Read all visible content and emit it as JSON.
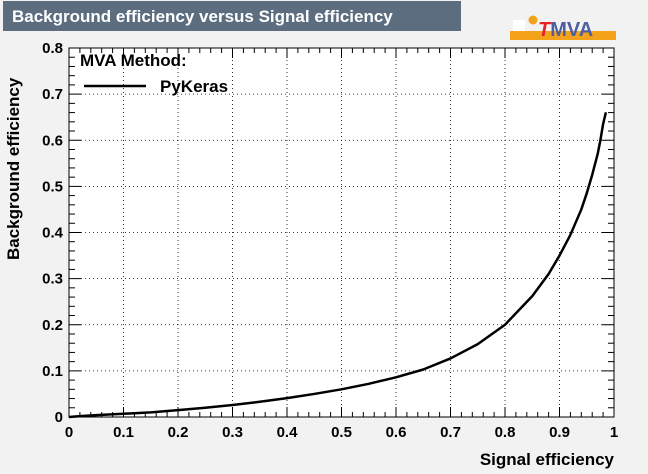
{
  "header": {
    "title": "Background efficiency versus Signal efficiency"
  },
  "logo": {
    "t_letter": "T",
    "rest": "MVA",
    "t_color": "#e8202a",
    "rest_color": "#4d5fa0",
    "accent_color": "#f5a21b"
  },
  "colors": {
    "title_bg": "#5d6d80",
    "page_bg": "#f2f2f2",
    "plot_bg": "#ffffff",
    "curve": "#000000"
  },
  "chart_data": {
    "type": "line",
    "title": "Background efficiency versus Signal efficiency",
    "xlabel": "Signal efficiency",
    "ylabel": "Background efficiency",
    "xlim": [
      0,
      1
    ],
    "ylim": [
      0,
      0.8
    ],
    "grid": true,
    "legend_position": "top-left",
    "legend_header": "MVA Method:",
    "x_ticks": [
      "0",
      "0.1",
      "0.2",
      "0.3",
      "0.4",
      "0.5",
      "0.6",
      "0.7",
      "0.8",
      "0.9",
      "1"
    ],
    "y_ticks": [
      "0",
      "0.1",
      "0.2",
      "0.3",
      "0.4",
      "0.5",
      "0.6",
      "0.7",
      "0.8"
    ],
    "series": [
      {
        "name": "PyKeras",
        "x": [
          0.0,
          0.02,
          0.05,
          0.1,
          0.15,
          0.2,
          0.25,
          0.3,
          0.35,
          0.4,
          0.45,
          0.5,
          0.55,
          0.6,
          0.65,
          0.7,
          0.75,
          0.8,
          0.85,
          0.88,
          0.9,
          0.92,
          0.94,
          0.95,
          0.96,
          0.97,
          0.975,
          0.98,
          0.985
        ],
        "y": [
          0.0,
          0.002,
          0.004,
          0.007,
          0.01,
          0.015,
          0.02,
          0.026,
          0.033,
          0.041,
          0.05,
          0.06,
          0.072,
          0.086,
          0.103,
          0.127,
          0.158,
          0.2,
          0.262,
          0.31,
          0.35,
          0.395,
          0.45,
          0.485,
          0.525,
          0.57,
          0.6,
          0.635,
          0.66
        ]
      }
    ]
  }
}
